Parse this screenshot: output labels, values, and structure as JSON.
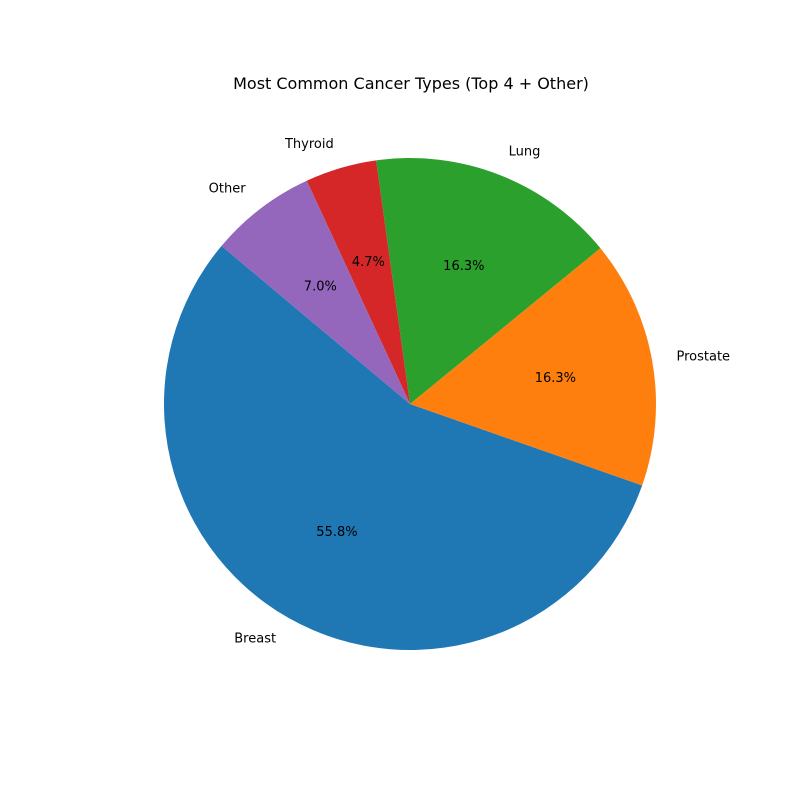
{
  "chart_data": {
    "type": "pie",
    "title": "Most Common Cancer Types (Top 4 + Other)",
    "categories": [
      "Breast",
      "Prostate",
      "Lung",
      "Thyroid",
      "Other"
    ],
    "values": [
      55.8,
      16.3,
      16.3,
      4.7,
      7.0
    ],
    "percent_labels": [
      "55.8%",
      "16.3%",
      "16.3%",
      "4.7%",
      "7.0%"
    ],
    "colors": [
      "#1f77b4",
      "#ff7f0e",
      "#2ca02c",
      "#d62728",
      "#9467bd"
    ],
    "start_angle_deg": 140,
    "direction": "counterclockwise",
    "legend": "none"
  }
}
